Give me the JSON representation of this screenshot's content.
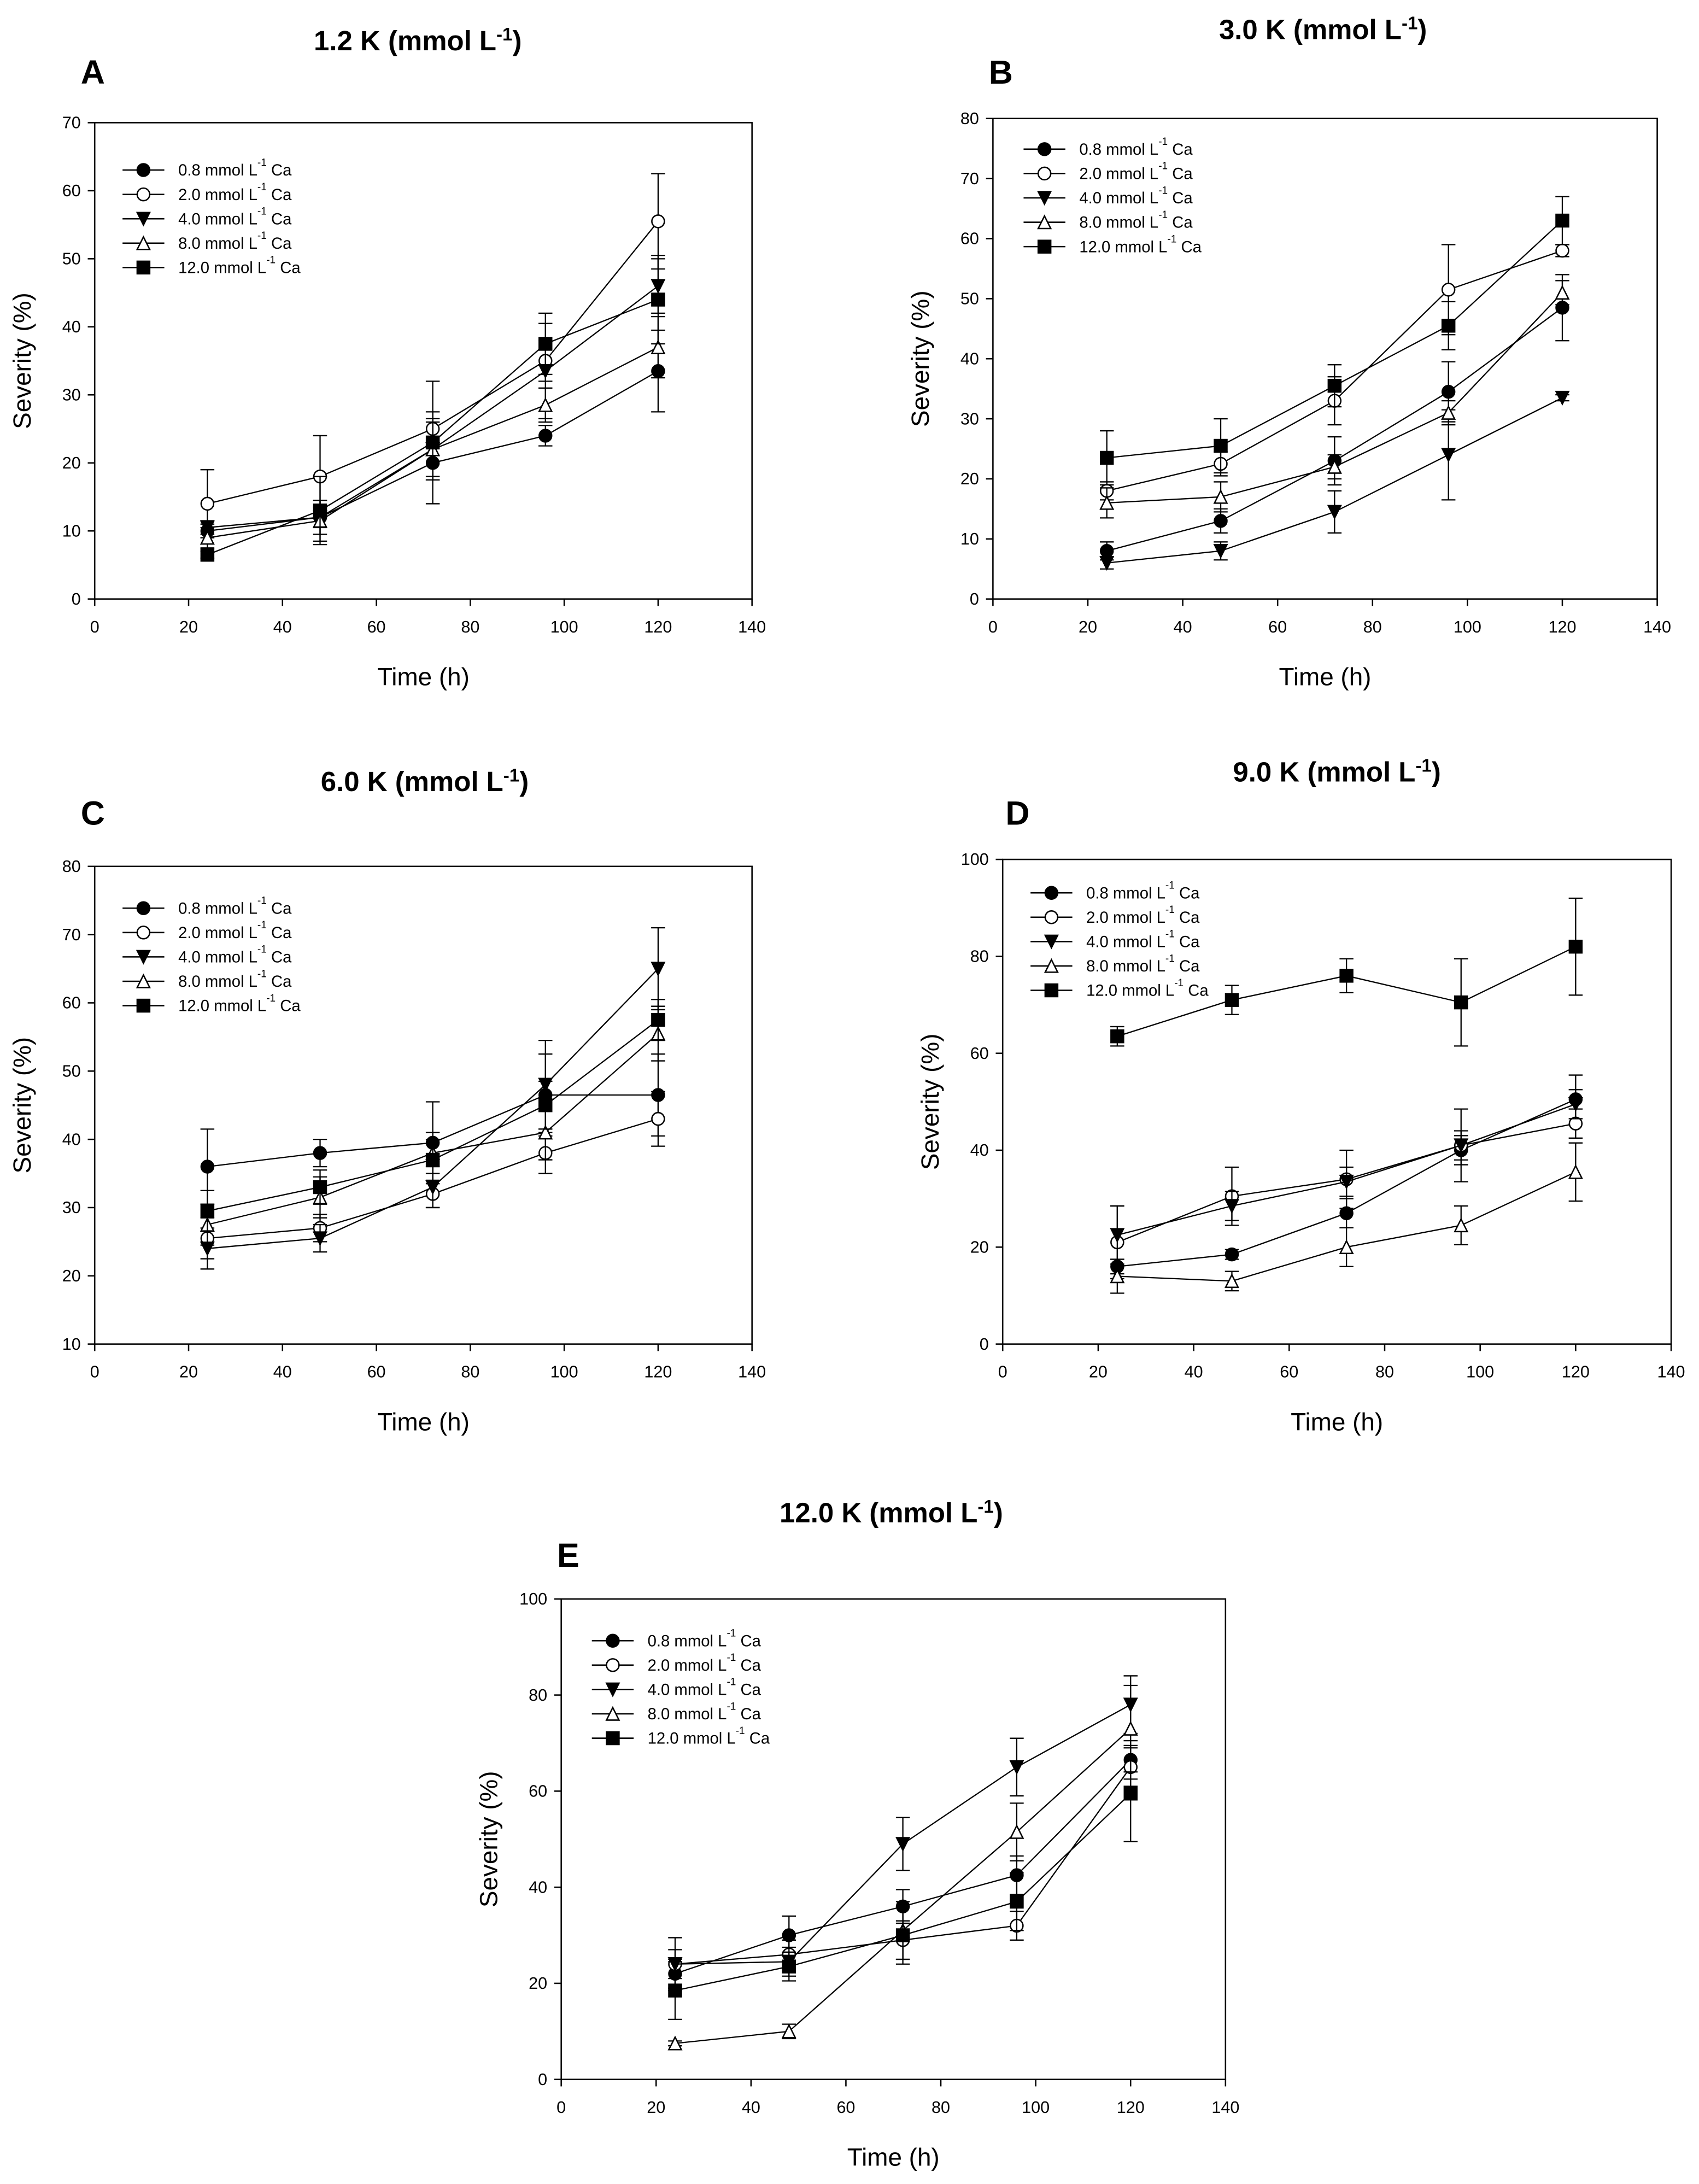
{
  "chart_data": [
    {
      "type": "line",
      "panel": "A",
      "title": "1.2 K (mmol L",
      "title_sup": "-1",
      "title_end": ")",
      "xlabel": "Time (h)",
      "ylabel": "Severity (%)",
      "xlim": [
        0,
        140
      ],
      "xticks": [
        0,
        20,
        40,
        60,
        80,
        100,
        120,
        140
      ],
      "ylim": [
        0,
        70
      ],
      "yticks": [
        0,
        10,
        20,
        30,
        40,
        50,
        60,
        70
      ],
      "legend": "top-left",
      "x": [
        24,
        48,
        72,
        96,
        120
      ],
      "series": [
        {
          "name": "0.8 mmol L-1 Ca",
          "marker": "circle-filled",
          "values": [
            10,
            12,
            20,
            24,
            33.5
          ],
          "err": [
            1,
            1.5,
            2.5,
            1.5,
            6
          ]
        },
        {
          "name": "2.0 mmol L-1 Ca",
          "marker": "circle-open",
          "values": [
            14,
            18,
            25,
            35,
            55.5
          ],
          "err": [
            5,
            6,
            2.5,
            3,
            7
          ]
        },
        {
          "name": "4.0 mmol L-1 Ca",
          "marker": "triangle-down-filled",
          "values": [
            10.5,
            12,
            22,
            33.5,
            46
          ],
          "err": [
            1,
            2.5,
            4.5,
            7,
            4
          ]
        },
        {
          "name": "8.0 mmol L-1 Ca",
          "marker": "triangle-up-open",
          "values": [
            9,
            11.5,
            22,
            28.5,
            37
          ],
          "err": [
            1.5,
            3,
            4,
            2.5,
            4.5
          ]
        },
        {
          "name": "12.0 mmol L-1 Ca",
          "marker": "square-filled",
          "values": [
            6.5,
            13,
            23,
            37.5,
            44
          ],
          "err": [
            0.5,
            5,
            9,
            4.5,
            6.5
          ]
        }
      ]
    },
    {
      "type": "line",
      "panel": "B",
      "title": "3.0 K (mmol L",
      "title_sup": "-1",
      "title_end": ")",
      "xlabel": "Time (h)",
      "ylabel": "Severity (%)",
      "xlim": [
        0,
        140
      ],
      "xticks": [
        0,
        20,
        40,
        60,
        80,
        100,
        120,
        140
      ],
      "ylim": [
        0,
        80
      ],
      "yticks": [
        0,
        10,
        20,
        30,
        40,
        50,
        60,
        70,
        80
      ],
      "legend": "top-left",
      "x": [
        24,
        48,
        72,
        96,
        120
      ],
      "series": [
        {
          "name": "0.8 mmol L-1 Ca",
          "marker": "circle-filled",
          "values": [
            8,
            13,
            23,
            34.5,
            48.5
          ],
          "err": [
            1.5,
            2,
            4,
            5,
            5.5
          ]
        },
        {
          "name": "2.0 mmol L-1 Ca",
          "marker": "circle-open",
          "values": [
            18,
            22.5,
            33,
            51.5,
            58
          ],
          "err": [
            1.5,
            2,
            4,
            7.5,
            1
          ]
        },
        {
          "name": "4.0 mmol L-1 Ca",
          "marker": "triangle-down-filled",
          "values": [
            6,
            8,
            14.5,
            24,
            33.5
          ],
          "err": [
            1,
            1.5,
            3.5,
            7.5,
            0.5
          ]
        },
        {
          "name": "8.0 mmol L-1 Ca",
          "marker": "triangle-up-open",
          "values": [
            16,
            17,
            22,
            31,
            51
          ],
          "err": [
            2.5,
            2.5,
            2,
            2,
            2
          ]
        },
        {
          "name": "12.0 mmol L-1 Ca",
          "marker": "square-filled",
          "values": [
            23.5,
            25.5,
            35.5,
            45.5,
            63
          ],
          "err": [
            4.5,
            4.5,
            3.5,
            4,
            4
          ]
        }
      ]
    },
    {
      "type": "line",
      "panel": "C",
      "title": "6.0 K (mmol L",
      "title_sup": "-1",
      "title_end": ")",
      "xlabel": "Time (h)",
      "ylabel": "Severity (%)",
      "xlim": [
        0,
        140
      ],
      "xticks": [
        0,
        20,
        40,
        60,
        80,
        100,
        120,
        140
      ],
      "ylim": [
        10,
        80
      ],
      "yticks": [
        10,
        20,
        30,
        40,
        50,
        60,
        70,
        80
      ],
      "legend": "top-left",
      "x": [
        24,
        48,
        72,
        96,
        120
      ],
      "series": [
        {
          "name": "0.8 mmol L-1 Ca",
          "marker": "circle-filled",
          "values": [
            36,
            38,
            39.5,
            46.5,
            46.5
          ],
          "err": [
            5.5,
            2,
            6,
            6,
            6
          ]
        },
        {
          "name": "2.0 mmol L-1 Ca",
          "marker": "circle-open",
          "values": [
            25.5,
            27,
            32,
            38,
            43
          ],
          "err": [
            3,
            2,
            2,
            3,
            4
          ]
        },
        {
          "name": "4.0 mmol L-1 Ca",
          "marker": "triangle-down-filled",
          "values": [
            24,
            25.5,
            33,
            48,
            65
          ],
          "err": [
            3,
            2,
            3,
            6.5,
            6
          ]
        },
        {
          "name": "8.0 mmol L-1 Ca",
          "marker": "triangle-up-open",
          "values": [
            27.5,
            31.5,
            38,
            41,
            55.5
          ],
          "err": [
            3,
            3,
            3,
            4,
            4
          ]
        },
        {
          "name": "12.0 mmol L-1 Ca",
          "marker": "square-filled",
          "values": [
            29.5,
            33,
            37,
            45,
            57.5
          ],
          "err": [
            3,
            2.5,
            3,
            3.5,
            3
          ]
        }
      ]
    },
    {
      "type": "line",
      "panel": "D",
      "title": "9.0 K (mmol L",
      "title_sup": "-1",
      "title_end": ")",
      "xlabel": "Time (h)",
      "ylabel": "Severity (%)",
      "xlim": [
        0,
        140
      ],
      "xticks": [
        0,
        20,
        40,
        60,
        80,
        100,
        120,
        140
      ],
      "ylim": [
        0,
        100
      ],
      "yticks": [
        0,
        20,
        40,
        60,
        80,
        100
      ],
      "legend": "top-left",
      "x": [
        24,
        48,
        72,
        96,
        120
      ],
      "series": [
        {
          "name": "0.8 mmol L-1 Ca",
          "marker": "circle-filled",
          "values": [
            16,
            18.5,
            27,
            40,
            50.5
          ],
          "err": [
            1.5,
            1,
            3,
            3,
            5
          ]
        },
        {
          "name": "2.0 mmol L-1 Ca",
          "marker": "circle-open",
          "values": [
            21,
            30.5,
            34,
            41,
            45.5
          ],
          "err": [
            7.5,
            6,
            6,
            7.5,
            3
          ]
        },
        {
          "name": "4.0 mmol L-1 Ca",
          "marker": "triangle-down-filled",
          "values": [
            22.5,
            28.5,
            33.5,
            41,
            49.5
          ],
          "err": [
            6,
            3,
            3,
            3,
            3
          ]
        },
        {
          "name": "8.0 mmol L-1 Ca",
          "marker": "triangle-up-open",
          "values": [
            14,
            13,
            20,
            24.5,
            35.5
          ],
          "err": [
            3.5,
            2,
            4,
            4,
            6
          ]
        },
        {
          "name": "12.0 mmol L-1 Ca",
          "marker": "square-filled",
          "values": [
            63.5,
            71,
            76,
            70.5,
            82
          ],
          "err": [
            2,
            3,
            3.5,
            9,
            10
          ]
        }
      ]
    },
    {
      "type": "line",
      "panel": "E",
      "title": "12.0 K (mmol L",
      "title_sup": "-1",
      "title_end": ")",
      "xlabel": "Time (h)",
      "ylabel": "Severity (%)",
      "xlim": [
        0,
        140
      ],
      "xticks": [
        0,
        20,
        40,
        60,
        80,
        100,
        120,
        140
      ],
      "ylim": [
        0,
        100
      ],
      "yticks": [
        0,
        20,
        40,
        60,
        80,
        100
      ],
      "legend": "top-left",
      "x": [
        24,
        48,
        72,
        96,
        120
      ],
      "series": [
        {
          "name": "0.8 mmol L-1 Ca",
          "marker": "circle-filled",
          "values": [
            22,
            30,
            36,
            42.5,
            66.5
          ],
          "err": [
            3,
            4,
            3.5,
            4,
            4
          ]
        },
        {
          "name": "2.0 mmol L-1 Ca",
          "marker": "circle-open",
          "values": [
            24,
            26,
            29,
            32,
            65
          ],
          "err": [
            5.5,
            3,
            4,
            3,
            4
          ]
        },
        {
          "name": "4.0 mmol L-1 Ca",
          "marker": "triangle-down-filled",
          "values": [
            24,
            24.5,
            49,
            65,
            78
          ],
          "err": [
            3,
            3,
            5.5,
            6,
            6
          ]
        },
        {
          "name": "8.0 mmol L-1 Ca",
          "marker": "triangle-up-open",
          "values": [
            7.5,
            10,
            31,
            51.5,
            73
          ],
          "err": [
            0.5,
            1.5,
            6,
            6,
            9
          ]
        },
        {
          "name": "12.0 mmol L-1 Ca",
          "marker": "square-filled",
          "values": [
            18.5,
            23.5,
            30,
            37,
            59.5
          ],
          "err": [
            6,
            3,
            6,
            6,
            10
          ]
        }
      ]
    }
  ]
}
